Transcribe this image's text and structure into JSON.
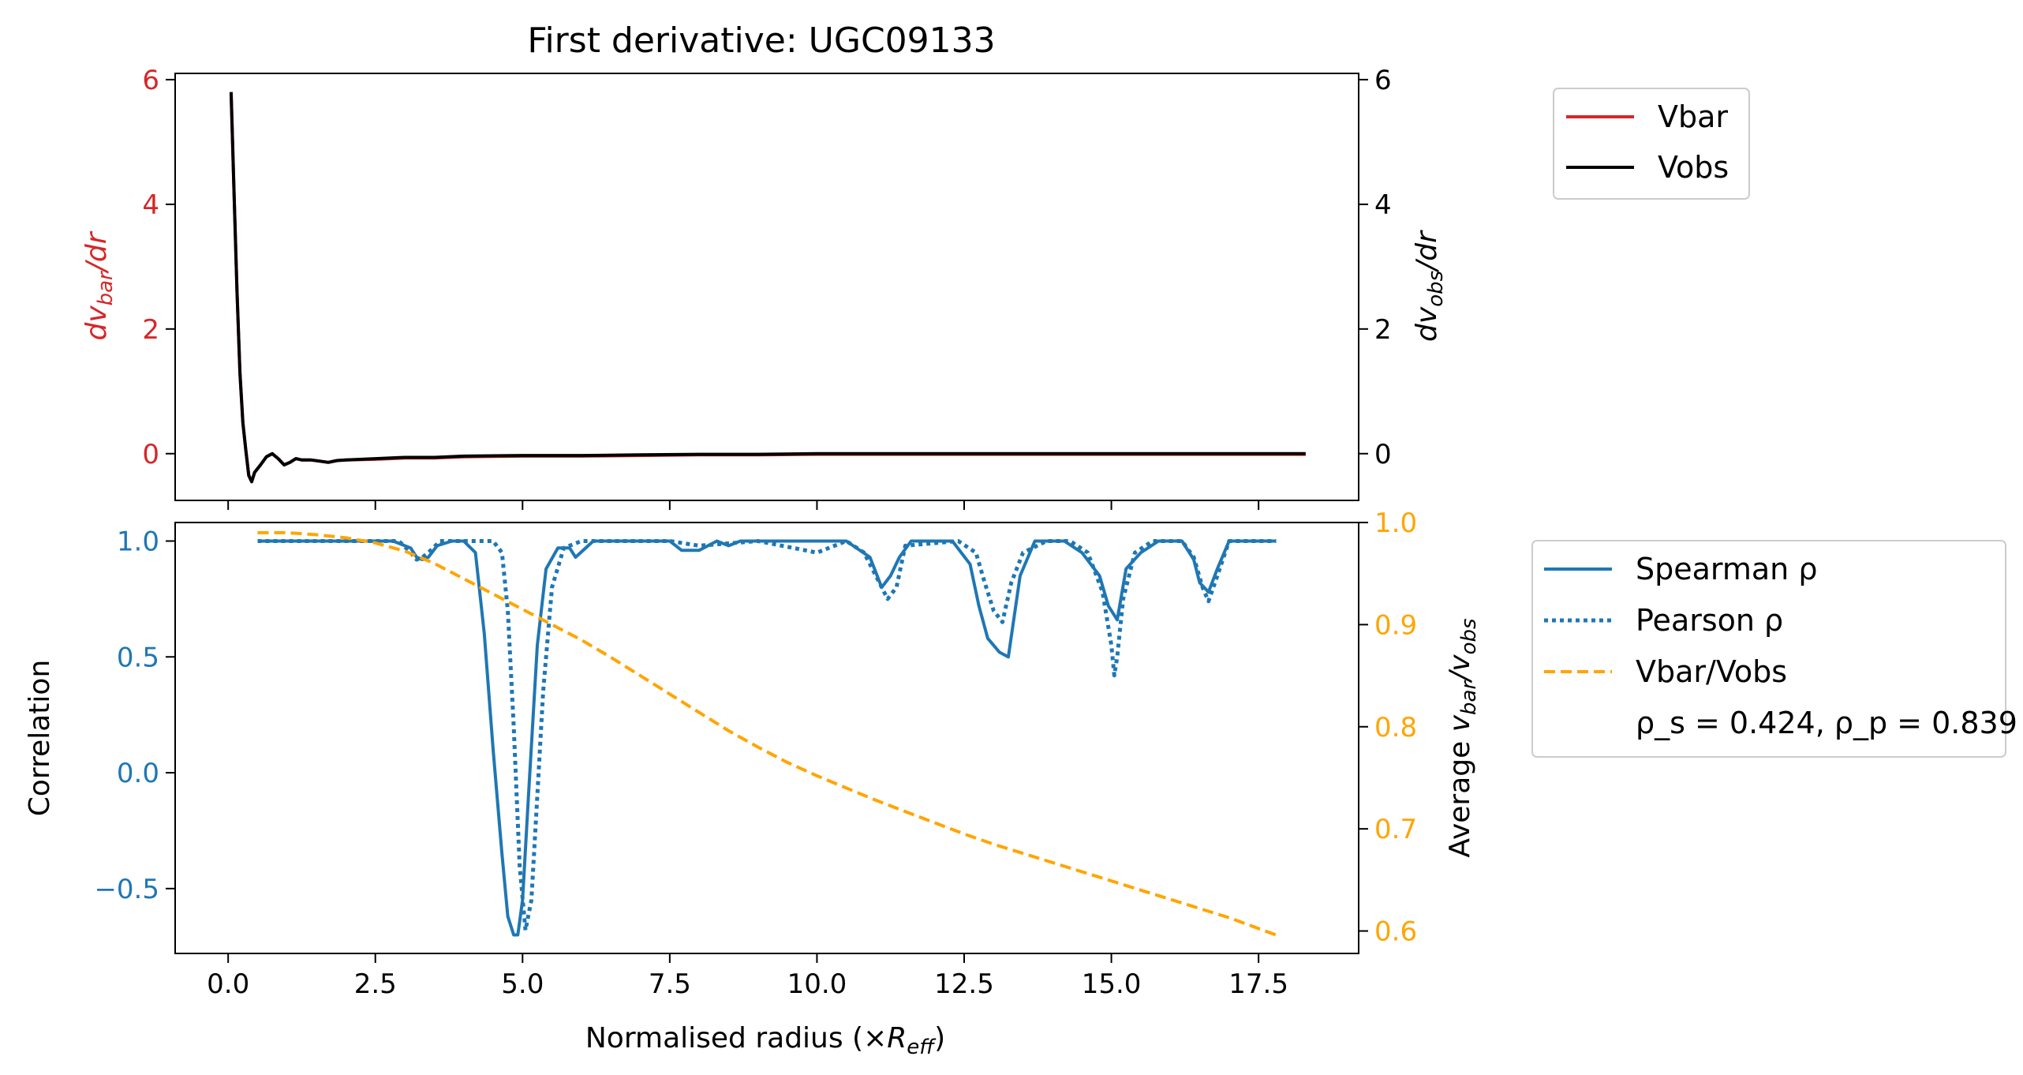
{
  "title": "First derivative: UGC09133",
  "colors": {
    "vbar": "#d62728",
    "vobs": "#000000",
    "spearman": "#1f77b4",
    "pearson": "#1f77b4",
    "ratio": "#ffa500",
    "left_top_axis": "#d62728",
    "left_bottom_axis": "#1f77b4",
    "right_bottom_axis": "#ffa500"
  },
  "chart_data": [
    {
      "type": "line",
      "panel": "top",
      "xlim": [
        -0.9,
        19.2
      ],
      "ylim_left": [
        -0.75,
        6.1
      ],
      "ylim_right": [
        -0.75,
        6.1
      ],
      "ylabel_left": "dv_bar/dr",
      "ylabel_right": "dv_obs/dr",
      "left_ticks": [
        "0",
        "2",
        "4",
        "6"
      ],
      "right_ticks": [
        "0",
        "2",
        "4",
        "6"
      ],
      "legend": {
        "placement": "outside-right-top",
        "entries": [
          "Vbar",
          "Vobs"
        ]
      },
      "series": [
        {
          "name": "Vbar",
          "x": [
            0.05,
            0.1,
            0.15,
            0.2,
            0.25,
            0.3,
            0.35,
            0.4,
            0.45,
            0.55,
            0.65,
            0.75,
            0.85,
            0.95,
            1.05,
            1.15,
            1.25,
            1.4,
            1.55,
            1.7,
            1.85,
            2.0,
            2.5,
            3.0,
            3.5,
            4.0,
            5.0,
            6.0,
            7.0,
            8.0,
            9.0,
            10.0,
            11.0,
            12.0,
            13.0,
            14.0,
            15.0,
            16.0,
            17.0,
            18.3
          ],
          "y": [
            5.8,
            4.2,
            2.6,
            1.3,
            0.5,
            0.05,
            -0.35,
            -0.45,
            -0.3,
            -0.18,
            -0.05,
            0.0,
            -0.08,
            -0.18,
            -0.14,
            -0.08,
            -0.1,
            -0.1,
            -0.12,
            -0.14,
            -0.11,
            -0.1,
            -0.09,
            -0.07,
            -0.07,
            -0.05,
            -0.04,
            -0.04,
            -0.03,
            -0.02,
            -0.02,
            -0.01,
            -0.01,
            -0.01,
            -0.01,
            -0.01,
            -0.01,
            -0.01,
            -0.01,
            -0.01
          ]
        },
        {
          "name": "Vobs",
          "x": [
            0.05,
            0.1,
            0.15,
            0.2,
            0.25,
            0.3,
            0.35,
            0.4,
            0.45,
            0.55,
            0.65,
            0.75,
            0.85,
            0.95,
            1.05,
            1.15,
            1.25,
            1.4,
            1.55,
            1.7,
            1.85,
            2.0,
            2.5,
            3.0,
            3.5,
            4.0,
            5.0,
            6.0,
            7.0,
            8.0,
            9.0,
            10.0,
            11.0,
            12.0,
            13.0,
            14.0,
            15.0,
            16.0,
            17.0,
            18.3
          ],
          "y": [
            5.8,
            4.2,
            2.6,
            1.3,
            0.5,
            0.05,
            -0.35,
            -0.45,
            -0.3,
            -0.18,
            -0.05,
            0.0,
            -0.08,
            -0.18,
            -0.14,
            -0.08,
            -0.1,
            -0.1,
            -0.12,
            -0.14,
            -0.11,
            -0.1,
            -0.08,
            -0.06,
            -0.06,
            -0.04,
            -0.03,
            -0.03,
            -0.02,
            -0.01,
            -0.01,
            0.0,
            0.0,
            0.0,
            0.0,
            0.0,
            0.0,
            0.0,
            0.0,
            0.0
          ]
        }
      ]
    },
    {
      "type": "line",
      "panel": "bottom",
      "xlabel": "Normalised radius (×R_eff)",
      "xlim": [
        -0.9,
        19.2
      ],
      "x_ticks": [
        "0.0",
        "2.5",
        "5.0",
        "7.5",
        "10.0",
        "12.5",
        "15.0",
        "17.5"
      ],
      "ylabel_left": "Correlation",
      "ylim_left": [
        -0.78,
        1.08
      ],
      "left_ticks": [
        "−0.5",
        "0.0",
        "0.5",
        "1.0"
      ],
      "ylabel_right": "Average v_bar/v_obs",
      "ylim_right": [
        0.578,
        1.0
      ],
      "right_ticks": [
        "0.6",
        "0.7",
        "0.8",
        "0.9",
        "1.0"
      ],
      "legend": {
        "placement": "outside-right-top",
        "entries": [
          "Spearman ρ",
          "Pearson ρ",
          "Vbar/Vobs"
        ],
        "note": "ρ_s = 0.424, ρ_p = 0.839"
      },
      "series": [
        {
          "name": "Spearman ρ",
          "axis": "left",
          "x": [
            0.5,
            2.8,
            3.1,
            3.2,
            3.3,
            3.4,
            3.55,
            3.8,
            4.0,
            4.2,
            4.35,
            4.5,
            4.65,
            4.75,
            4.85,
            4.92,
            5.0,
            5.1,
            5.25,
            5.4,
            5.6,
            5.8,
            5.9,
            6.2,
            7.5,
            7.7,
            8.0,
            8.3,
            8.5,
            8.7,
            9.0,
            10.5,
            10.9,
            11.1,
            11.25,
            11.4,
            11.6,
            12.3,
            12.6,
            12.75,
            12.9,
            13.1,
            13.25,
            13.45,
            13.7,
            14.2,
            14.5,
            14.8,
            14.95,
            15.1,
            15.25,
            15.5,
            15.8,
            16.2,
            16.4,
            16.5,
            16.65,
            16.8,
            17.0,
            17.8
          ],
          "y": [
            1.0,
            1.0,
            0.97,
            0.93,
            0.92,
            0.93,
            0.98,
            1.0,
            1.0,
            0.95,
            0.6,
            0.1,
            -0.35,
            -0.62,
            -0.7,
            -0.7,
            -0.55,
            -0.1,
            0.55,
            0.88,
            0.97,
            0.97,
            0.93,
            1.0,
            1.0,
            0.96,
            0.96,
            1.0,
            0.98,
            1.0,
            1.0,
            1.0,
            0.93,
            0.8,
            0.85,
            0.93,
            1.0,
            1.0,
            0.9,
            0.72,
            0.58,
            0.52,
            0.5,
            0.85,
            1.0,
            1.0,
            0.95,
            0.85,
            0.72,
            0.66,
            0.88,
            0.95,
            1.0,
            1.0,
            0.92,
            0.82,
            0.78,
            0.88,
            1.0,
            1.0
          ]
        },
        {
          "name": "Pearson ρ",
          "axis": "left",
          "x": [
            0.5,
            2.9,
            3.1,
            3.2,
            3.3,
            3.4,
            3.6,
            4.0,
            4.3,
            4.5,
            4.65,
            4.75,
            4.85,
            4.95,
            5.05,
            5.15,
            5.25,
            5.35,
            5.5,
            5.7,
            6.0,
            7.5,
            8.0,
            9.0,
            9.8,
            10.0,
            10.2,
            10.5,
            10.8,
            11.0,
            11.2,
            11.35,
            11.5,
            12.4,
            12.7,
            12.85,
            13.0,
            13.15,
            13.3,
            13.5,
            13.9,
            14.3,
            14.6,
            14.85,
            15.0,
            15.05,
            15.1,
            15.2,
            15.4,
            15.7,
            16.2,
            16.4,
            16.55,
            16.65,
            16.8,
            17.0,
            17.8
          ],
          "y": [
            1.0,
            1.0,
            0.95,
            0.92,
            0.93,
            0.95,
            1.0,
            1.0,
            1.0,
            1.0,
            0.95,
            0.7,
            0.2,
            -0.4,
            -0.68,
            -0.55,
            -0.1,
            0.35,
            0.8,
            0.97,
            1.0,
            1.0,
            0.98,
            1.0,
            0.96,
            0.95,
            0.97,
            1.0,
            0.95,
            0.85,
            0.75,
            0.8,
            0.98,
            1.0,
            0.95,
            0.82,
            0.7,
            0.65,
            0.82,
            0.95,
            1.0,
            1.0,
            0.95,
            0.78,
            0.55,
            0.42,
            0.5,
            0.75,
            0.95,
            1.0,
            1.0,
            0.93,
            0.8,
            0.74,
            0.85,
            1.0,
            1.0
          ]
        },
        {
          "name": "Vbar/Vobs",
          "axis": "right",
          "x": [
            0.5,
            1.0,
            1.5,
            2.0,
            2.5,
            3.0,
            3.5,
            4.0,
            4.5,
            5.0,
            5.5,
            6.0,
            6.5,
            7.0,
            7.5,
            8.0,
            8.5,
            9.0,
            9.5,
            10.0,
            10.5,
            11.0,
            11.5,
            12.0,
            12.5,
            13.0,
            13.5,
            14.0,
            14.5,
            15.0,
            15.5,
            16.0,
            16.5,
            17.0,
            17.8
          ],
          "y": [
            0.99,
            0.99,
            0.988,
            0.985,
            0.98,
            0.972,
            0.96,
            0.945,
            0.93,
            0.915,
            0.9,
            0.885,
            0.868,
            0.85,
            0.832,
            0.814,
            0.796,
            0.78,
            0.765,
            0.752,
            0.74,
            0.728,
            0.717,
            0.706,
            0.695,
            0.685,
            0.676,
            0.667,
            0.658,
            0.649,
            0.64,
            0.631,
            0.622,
            0.613,
            0.596
          ]
        }
      ]
    }
  ]
}
